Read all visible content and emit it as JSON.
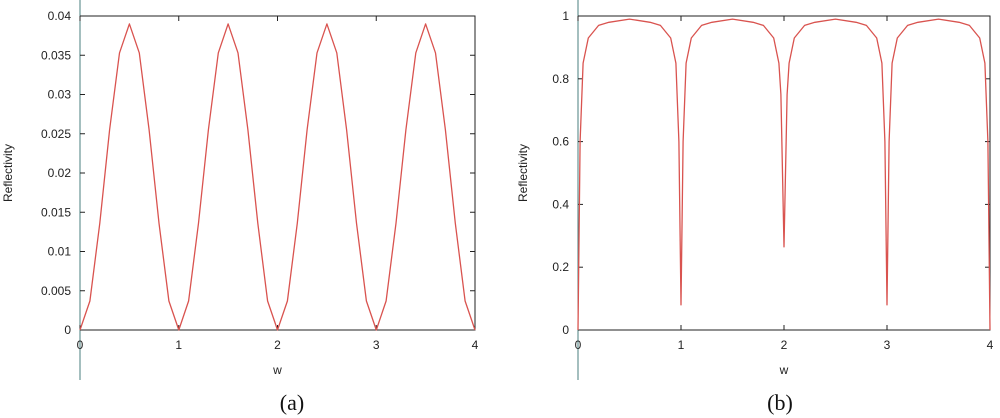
{
  "chart_data": [
    {
      "type": "line",
      "caption": "(a)",
      "xlabel": "w",
      "ylabel": "Reflectivity",
      "xlim": [
        0,
        4
      ],
      "ylim": [
        0,
        0.04
      ],
      "x_ticks": [
        "0",
        "1",
        "2",
        "3",
        "4"
      ],
      "y_ticks": [
        "0",
        "0.005",
        "0.01",
        "0.015",
        "0.02",
        "0.025",
        "0.03",
        "0.035",
        "0.04"
      ],
      "grid": false,
      "legend": "none",
      "line_color": "#d9534f",
      "series": [
        {
          "x": [
            0,
            0.1,
            0.2,
            0.3,
            0.4,
            0.5,
            0.6,
            0.7,
            0.8,
            0.9,
            1.0,
            1.1,
            1.2,
            1.3,
            1.4,
            1.5,
            1.6,
            1.7,
            1.8,
            1.9,
            2.0,
            2.1,
            2.2,
            2.3,
            2.4,
            2.5,
            2.6,
            2.7,
            2.8,
            2.9,
            3.0,
            3.1,
            3.2,
            3.3,
            3.4,
            3.5,
            3.6,
            3.7,
            3.8,
            3.9,
            4.0
          ],
          "values": [
            0,
            0.0037,
            0.0136,
            0.0255,
            0.0353,
            0.039,
            0.0353,
            0.0255,
            0.0136,
            0.0037,
            0,
            0.0037,
            0.0136,
            0.0255,
            0.0353,
            0.039,
            0.0353,
            0.0255,
            0.0136,
            0.0037,
            0,
            0.0037,
            0.0136,
            0.0255,
            0.0353,
            0.039,
            0.0353,
            0.0255,
            0.0136,
            0.0037,
            0,
            0.0037,
            0.0136,
            0.0255,
            0.0353,
            0.039,
            0.0353,
            0.0255,
            0.0136,
            0.0037,
            0
          ]
        }
      ]
    },
    {
      "type": "line",
      "caption": "(b)",
      "xlabel": "w",
      "ylabel": "Reflectivity",
      "xlim": [
        0,
        4
      ],
      "ylim": [
        0,
        1
      ],
      "x_ticks": [
        "0",
        "1",
        "2",
        "3",
        "4"
      ],
      "y_ticks": [
        "0",
        "0.2",
        "0.4",
        "0.6",
        "0.8",
        "1"
      ],
      "grid": false,
      "legend": "none",
      "line_color": "#d9534f",
      "series": [
        {
          "x": [
            0,
            0.02,
            0.05,
            0.1,
            0.2,
            0.3,
            0.5,
            0.7,
            0.8,
            0.9,
            0.95,
            0.98,
            1.0,
            1.02,
            1.05,
            1.1,
            1.2,
            1.3,
            1.5,
            1.7,
            1.8,
            1.9,
            1.95,
            1.97,
            2.0,
            2.03,
            2.05,
            2.1,
            2.2,
            2.3,
            2.5,
            2.7,
            2.8,
            2.9,
            2.95,
            2.98,
            3.0,
            3.02,
            3.05,
            3.1,
            3.2,
            3.3,
            3.5,
            3.7,
            3.8,
            3.9,
            3.95,
            3.98,
            4.0
          ],
          "values": [
            0,
            0.6,
            0.85,
            0.93,
            0.97,
            0.98,
            0.99,
            0.98,
            0.97,
            0.93,
            0.85,
            0.6,
            0.08,
            0.6,
            0.85,
            0.93,
            0.97,
            0.98,
            0.99,
            0.98,
            0.97,
            0.93,
            0.85,
            0.75,
            0.265,
            0.75,
            0.85,
            0.93,
            0.97,
            0.98,
            0.99,
            0.98,
            0.97,
            0.93,
            0.85,
            0.6,
            0.08,
            0.6,
            0.85,
            0.93,
            0.97,
            0.98,
            0.99,
            0.98,
            0.97,
            0.93,
            0.85,
            0.6,
            0
          ]
        }
      ]
    }
  ]
}
